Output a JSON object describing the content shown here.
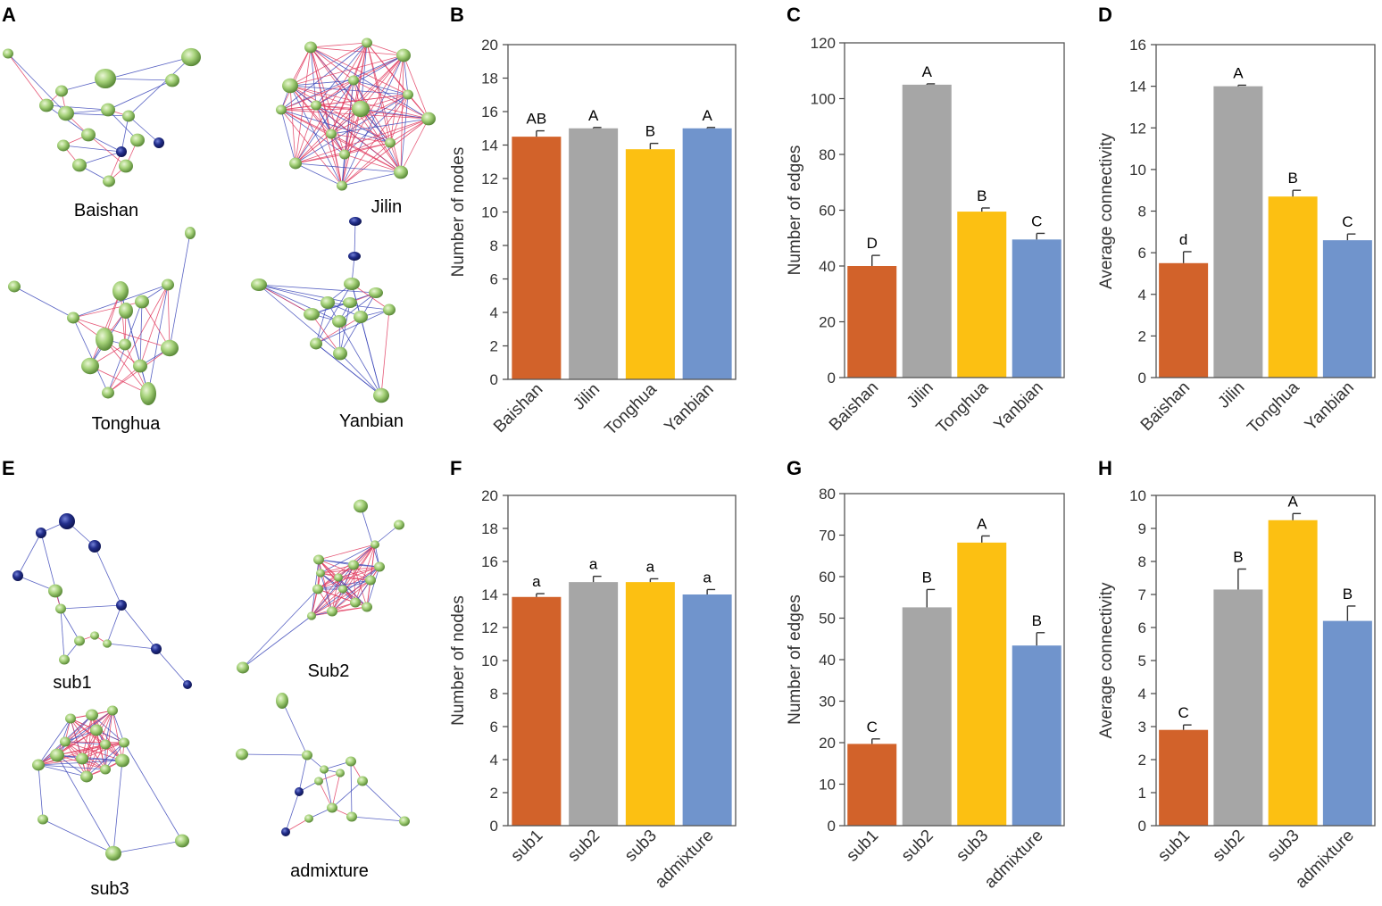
{
  "colors": {
    "bar_colors": [
      "#d2622a",
      "#a6a6a6",
      "#fcc012",
      "#7094cc"
    ],
    "node_green": "#9fcd6e",
    "node_blue": "#1b2a7a",
    "edge_pink": "#e03a5e",
    "edge_blue": "#3b47b8"
  },
  "panels": {
    "A": {
      "letter": "A",
      "networks": [
        {
          "label": "Baishan"
        },
        {
          "label": "Jilin"
        },
        {
          "label": "Tonghua"
        },
        {
          "label": "Yanbian"
        }
      ]
    },
    "E": {
      "letter": "E",
      "networks": [
        {
          "label": "sub1"
        },
        {
          "label": "Sub2"
        },
        {
          "label": "sub3"
        },
        {
          "label": "admixture"
        }
      ]
    }
  },
  "chart_data": [
    {
      "id": "B",
      "type": "bar",
      "letter": "B",
      "ylabel": "Number of nodes",
      "categories": [
        "Baishan",
        "Jilin",
        "Tonghua",
        "Yanbian"
      ],
      "values": [
        14.5,
        15.0,
        13.75,
        15.0
      ],
      "errors": [
        0.35,
        0.05,
        0.35,
        0.05
      ],
      "letters": [
        "AB",
        "A",
        "B",
        "A"
      ],
      "ylim": [
        0,
        20
      ],
      "ticks": [
        0,
        2,
        4,
        6,
        8,
        10,
        12,
        14,
        16,
        18,
        20
      ],
      "tick_labels": [
        "0",
        "2",
        "4",
        "6",
        "8",
        "10",
        "12",
        "14",
        "16",
        "18",
        "20"
      ]
    },
    {
      "id": "C",
      "type": "bar",
      "letter": "C",
      "ylabel": "Number of edges",
      "categories": [
        "Baishan",
        "Jilin",
        "Tonghua",
        "Yanbian"
      ],
      "values": [
        40,
        105,
        59.5,
        49.5
      ],
      "errors": [
        3.8,
        0.3,
        1.3,
        2.2
      ],
      "letters": [
        "D",
        "A",
        "B",
        "C"
      ],
      "ylim": [
        0,
        120
      ],
      "ticks": [
        0,
        20,
        40,
        60,
        80,
        100,
        120
      ],
      "tick_labels": [
        "0",
        "20",
        "40",
        "60",
        "80",
        "100",
        "120"
      ]
    },
    {
      "id": "D",
      "type": "bar",
      "letter": "D",
      "ylabel": "Average connectivity",
      "categories": [
        "Baishan",
        "Jilin",
        "Tonghua",
        "Yanbian"
      ],
      "values": [
        5.5,
        14.0,
        8.7,
        6.6
      ],
      "errors": [
        0.55,
        0.05,
        0.3,
        0.3
      ],
      "letters": [
        "d",
        "A",
        "B",
        "C"
      ],
      "ylim": [
        0,
        16
      ],
      "ticks": [
        0,
        2,
        4,
        6,
        8,
        10,
        12,
        14,
        16
      ],
      "tick_labels": [
        "0",
        "2",
        "4",
        "6",
        "8",
        "10",
        "12",
        "14",
        "16"
      ]
    },
    {
      "id": "F",
      "type": "bar",
      "letter": "F",
      "ylabel": "Number of nodes",
      "categories": [
        "sub1",
        "sub2",
        "sub3",
        "admixture"
      ],
      "values": [
        13.85,
        14.75,
        14.75,
        14.0
      ],
      "errors": [
        0.2,
        0.35,
        0.2,
        0.3
      ],
      "letters": [
        "a",
        "a",
        "a",
        "a"
      ],
      "ylim": [
        0,
        20
      ],
      "ticks": [
        0,
        2,
        4,
        6,
        8,
        10,
        12,
        14,
        16,
        18,
        20
      ],
      "tick_labels": [
        "0",
        "2",
        "4",
        "6",
        "8",
        "10",
        "12",
        "14",
        "16",
        "18",
        "20"
      ]
    },
    {
      "id": "G",
      "type": "bar",
      "letter": "G",
      "ylabel": "Number of edges",
      "categories": [
        "sub1",
        "sub2",
        "sub3",
        "admixture"
      ],
      "values": [
        19.7,
        52.6,
        68.2,
        43.4
      ],
      "errors": [
        1.2,
        4.3,
        1.6,
        3.1
      ],
      "letters": [
        "C",
        "B",
        "A",
        "B"
      ],
      "ylim": [
        0,
        80
      ],
      "ticks": [
        0,
        10,
        20,
        30,
        40,
        50,
        60,
        70,
        80
      ],
      "tick_labels": [
        "0",
        "10",
        "20",
        "30",
        "40",
        "50",
        "60",
        "70",
        "80"
      ]
    },
    {
      "id": "H",
      "type": "bar",
      "letter": "H",
      "ylabel": "Average connectivity",
      "categories": [
        "sub1",
        "sub2",
        "sub3",
        "admixture"
      ],
      "values": [
        2.9,
        7.15,
        9.25,
        6.2
      ],
      "errors": [
        0.15,
        0.62,
        0.2,
        0.45
      ],
      "letters": [
        "C",
        "B",
        "A",
        "B"
      ],
      "ylim": [
        0,
        10
      ],
      "ticks": [
        0,
        1,
        2,
        3,
        4,
        5,
        6,
        7,
        8,
        9,
        10
      ],
      "tick_labels": [
        "0",
        "1",
        "2",
        "3",
        "4",
        "5",
        "6",
        "7",
        "8",
        "9",
        "10"
      ]
    }
  ]
}
